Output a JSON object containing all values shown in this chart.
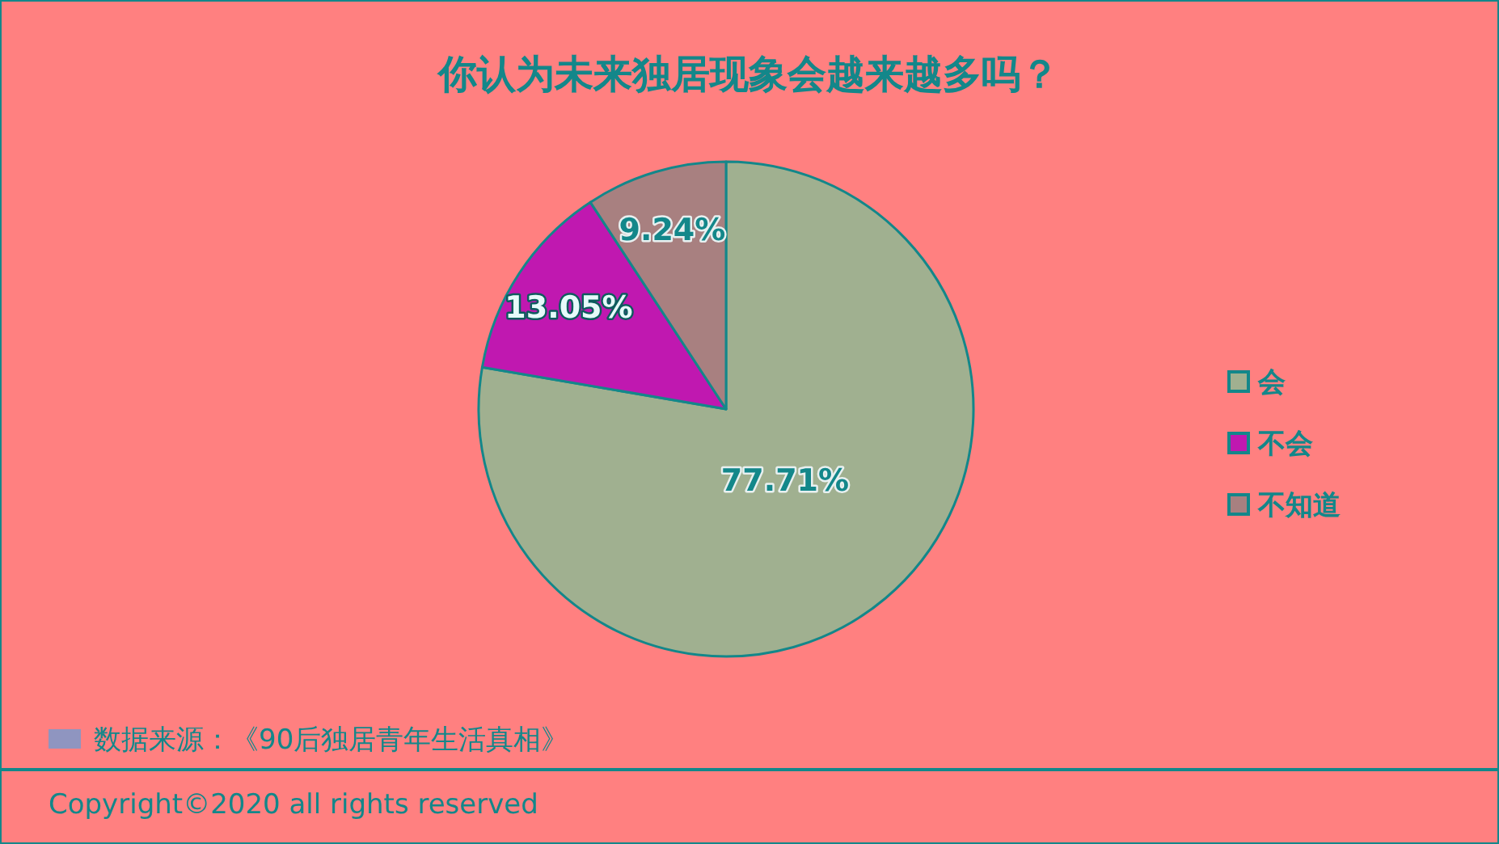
{
  "chart_data": {
    "type": "pie",
    "title": "你认为未来独居现象会越来越多吗？",
    "categories": [
      "会",
      "不会",
      "不知道"
    ],
    "values": [
      77.71,
      13.05,
      9.24
    ],
    "colors": [
      "#a0b090",
      "#c018b0",
      "#a88080"
    ],
    "value_labels": [
      "77.71%",
      "13.05%",
      "9.24%"
    ],
    "legend": "right",
    "annotations": [
      "数据来源：《90后独居青年生活真相》",
      "Copyright©2020 all rights reserved"
    ]
  }
}
